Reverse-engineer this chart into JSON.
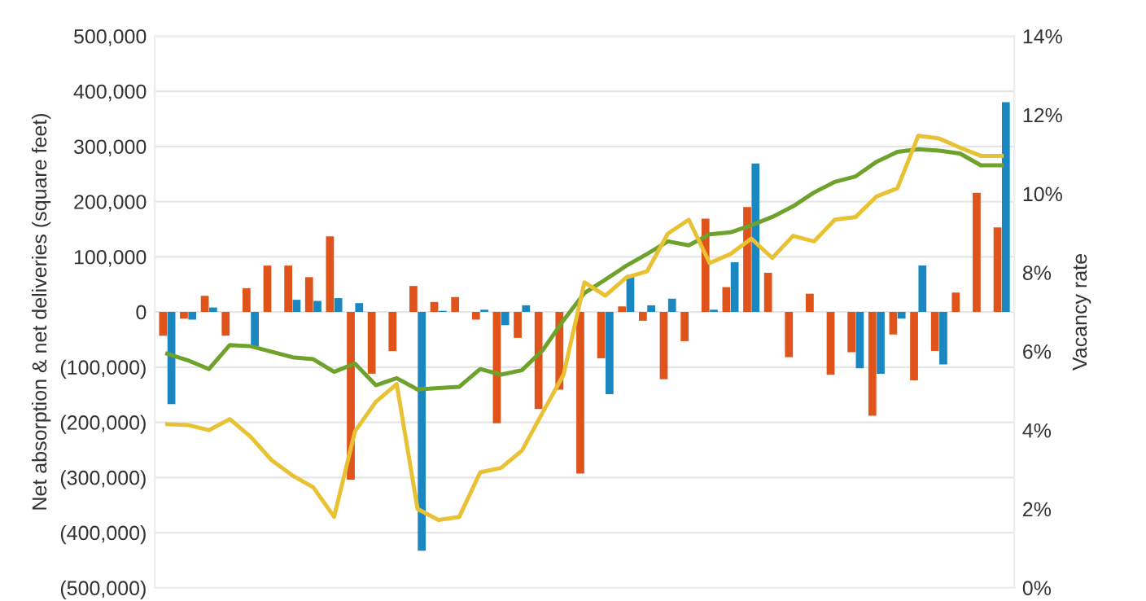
{
  "chart_data": {
    "type": "bar",
    "ylabel": "Net absorption & net deliveries (square feet)",
    "y2label": "Vacancy rate",
    "categories": [
      null,
      null,
      null,
      null,
      null,
      null,
      null,
      null,
      null,
      null,
      null,
      null,
      null,
      null,
      null,
      null,
      null,
      null,
      null,
      null,
      null,
      null,
      null,
      null,
      null,
      null,
      null,
      null,
      null,
      null,
      null,
      null,
      null,
      null,
      null,
      null,
      null,
      null,
      null,
      null,
      null
    ],
    "series": [
      {
        "color": "#e0531b",
        "values": [
          -43000,
          -12000,
          29000,
          -43000,
          43000,
          84000,
          84000,
          63000,
          137000,
          -304000,
          -112000,
          -71000,
          47000,
          18000,
          27000,
          -14000,
          -202000,
          -47000,
          -176000,
          -141000,
          -293000,
          -84000,
          10000,
          -16000,
          -122000,
          -53000,
          169000,
          45000,
          190000,
          71000,
          -82000,
          33000,
          -114000,
          -73000,
          -188000,
          -41000,
          -124000,
          -71000,
          35000,
          216000,
          153000
        ]
      },
      {
        "color": "#1a87c0",
        "values": [
          -167000,
          -14000,
          8000,
          null,
          -63000,
          null,
          22000,
          20000,
          25000,
          16000,
          null,
          null,
          -433000,
          2000,
          null,
          4000,
          -24000,
          12000,
          null,
          null,
          null,
          -149000,
          67000,
          12000,
          24000,
          null,
          4000,
          90000,
          269000,
          null,
          null,
          null,
          null,
          -102000,
          -112000,
          -12000,
          84000,
          -95000,
          null,
          null,
          380000
        ]
      },
      {
        "type": "line",
        "axis": "y2",
        "color": "#6ea22d",
        "values": [
          5.94,
          5.77,
          5.55,
          6.16,
          6.13,
          5.99,
          5.85,
          5.8,
          5.48,
          5.69,
          5.14,
          5.32,
          5.03,
          5.07,
          5.1,
          5.55,
          5.41,
          5.52,
          6.03,
          6.79,
          7.48,
          7.82,
          8.17,
          8.47,
          8.79,
          8.69,
          8.97,
          9.02,
          9.2,
          9.41,
          9.68,
          10.03,
          10.3,
          10.44,
          10.81,
          11.06,
          11.13,
          11.09,
          11.02,
          10.72,
          10.72
        ]
      },
      {
        "type": "line",
        "axis": "y2",
        "color": "#e8c234",
        "values": [
          4.15,
          4.13,
          4.0,
          4.28,
          3.83,
          3.24,
          2.85,
          2.55,
          1.8,
          3.97,
          4.72,
          5.17,
          2.0,
          1.72,
          1.8,
          2.93,
          3.04,
          3.48,
          4.45,
          5.41,
          7.75,
          7.41,
          7.87,
          8.03,
          8.99,
          9.34,
          8.24,
          8.47,
          8.86,
          8.37,
          8.93,
          8.79,
          9.34,
          9.41,
          9.93,
          10.14,
          11.47,
          11.4,
          11.17,
          10.96,
          10.96
        ]
      }
    ],
    "ylim": [
      -500000,
      500000
    ],
    "yticks": [
      {
        "value": 500000,
        "label": "500,000"
      },
      {
        "value": 400000,
        "label": "400,000"
      },
      {
        "value": 300000,
        "label": "300,000"
      },
      {
        "value": 200000,
        "label": "200,000"
      },
      {
        "value": 100000,
        "label": "100,000"
      },
      {
        "value": 0,
        "label": "0"
      },
      {
        "value": -100000,
        "label": "(100,000)"
      },
      {
        "value": -200000,
        "label": "(200,000)"
      },
      {
        "value": -300000,
        "label": "(300,000)"
      },
      {
        "value": -400000,
        "label": "(400,000)"
      },
      {
        "value": -500000,
        "label": "(500,000)"
      }
    ],
    "y2lim": [
      0,
      14
    ],
    "y2ticks": [
      {
        "value": 0,
        "label": "0%"
      },
      {
        "value": 2,
        "label": "2%"
      },
      {
        "value": 4,
        "label": "4%"
      },
      {
        "value": 6,
        "label": "6%"
      },
      {
        "value": 8,
        "label": "8%"
      },
      {
        "value": 10,
        "label": "10%"
      },
      {
        "value": 12,
        "label": "12%"
      },
      {
        "value": 14,
        "label": "14%"
      }
    ],
    "grid": "y",
    "legend": false
  }
}
